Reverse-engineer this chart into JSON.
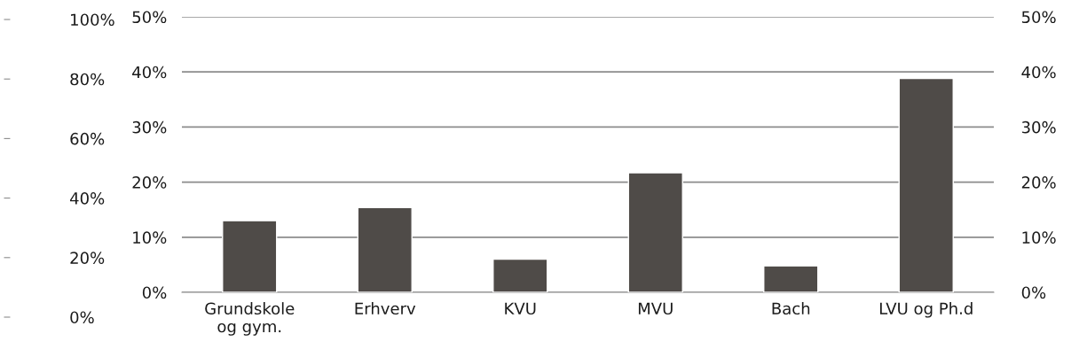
{
  "chart_data": {
    "type": "bar",
    "categories": [
      "Grundskole\nog gym.",
      "Erhverv",
      "KVU",
      "MVU",
      "Bach",
      "LVU og Ph.d"
    ],
    "values": [
      13.0,
      15.4,
      6.0,
      21.7,
      4.8,
      38.8
    ],
    "color": "#4f4b48",
    "ylim": [
      0,
      50
    ],
    "yticks": [
      {
        "value": 0,
        "label": "0%"
      },
      {
        "value": 10,
        "label": "10%"
      },
      {
        "value": 20,
        "label": "20%"
      },
      {
        "value": 30,
        "label": "30%"
      },
      {
        "value": 40,
        "label": "40%"
      },
      {
        "value": 50,
        "label": "50%"
      }
    ],
    "y2lim": [
      0,
      50
    ],
    "y2ticks": [
      {
        "value": 0,
        "label": "0%"
      },
      {
        "value": 10,
        "label": "10%"
      },
      {
        "value": 20,
        "label": "20%"
      },
      {
        "value": 30,
        "label": "30%"
      },
      {
        "value": 40,
        "label": "40%"
      },
      {
        "value": 50,
        "label": "50%"
      }
    ],
    "y3lim": [
      0,
      100
    ],
    "y3ticks": [
      {
        "value": 0,
        "label": "0%"
      },
      {
        "value": 20,
        "label": "20%"
      },
      {
        "value": 40,
        "label": "40%"
      },
      {
        "value": 60,
        "label": "60%"
      },
      {
        "value": 80,
        "label": "80%"
      },
      {
        "value": 100,
        "label": "100%"
      }
    ],
    "grid": "y"
  }
}
